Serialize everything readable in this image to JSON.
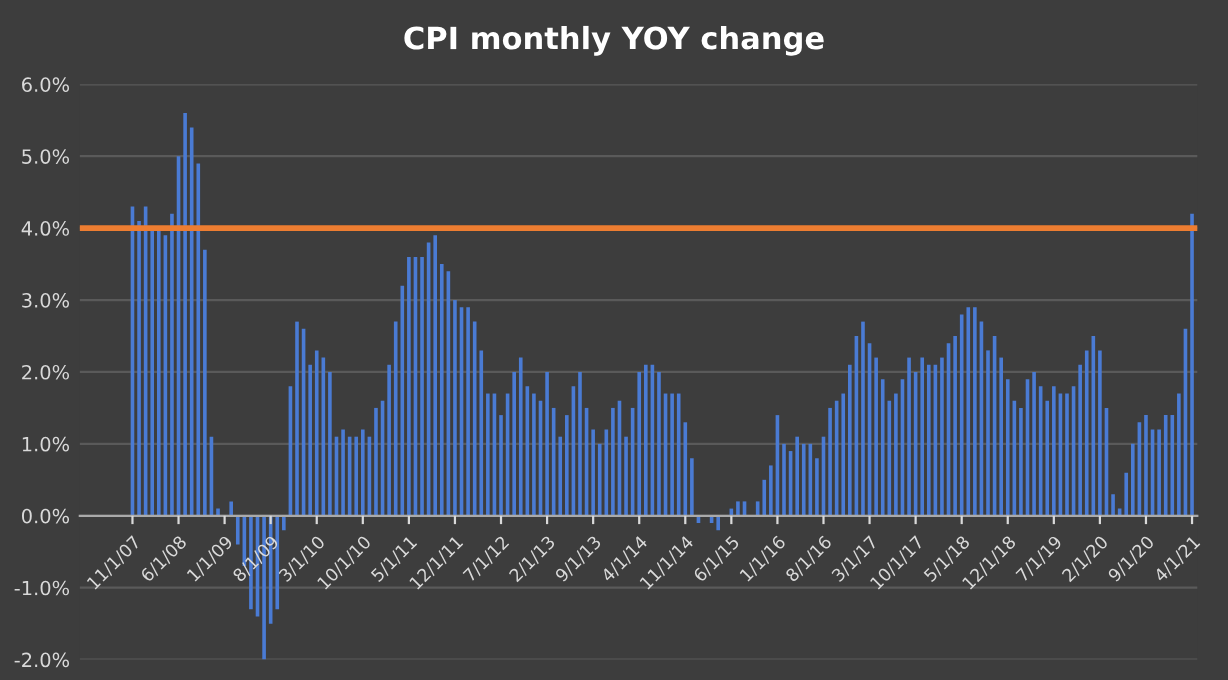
{
  "chart_data": {
    "type": "bar",
    "title": "CPI monthly YOY change",
    "categories": [
      "11/1/07",
      null,
      null,
      null,
      null,
      null,
      null,
      "6/1/08",
      null,
      null,
      null,
      null,
      null,
      null,
      "1/1/09",
      null,
      null,
      null,
      null,
      null,
      null,
      "8/1/09",
      null,
      null,
      null,
      null,
      null,
      null,
      "3/1/10",
      null,
      null,
      null,
      null,
      null,
      null,
      "10/1/10",
      null,
      null,
      null,
      null,
      null,
      null,
      "5/1/11",
      null,
      null,
      null,
      null,
      null,
      null,
      "12/1/11",
      null,
      null,
      null,
      null,
      null,
      null,
      "7/1/12",
      null,
      null,
      null,
      null,
      null,
      null,
      "2/1/13",
      null,
      null,
      null,
      null,
      null,
      null,
      "9/1/13",
      null,
      null,
      null,
      null,
      null,
      null,
      "4/1/14",
      null,
      null,
      null,
      null,
      null,
      null,
      "11/1/14",
      null,
      null,
      null,
      null,
      null,
      null,
      "6/1/15",
      null,
      null,
      null,
      null,
      null,
      null,
      "1/1/16",
      null,
      null,
      null,
      null,
      null,
      null,
      "8/1/16",
      null,
      null,
      null,
      null,
      null,
      null,
      "3/1/17",
      null,
      null,
      null,
      null,
      null,
      null,
      "10/1/17",
      null,
      null,
      null,
      null,
      null,
      null,
      "5/1/18",
      null,
      null,
      null,
      null,
      null,
      null,
      "12/1/18",
      null,
      null,
      null,
      null,
      null,
      null,
      "7/1/19",
      null,
      null,
      null,
      null,
      null,
      null,
      "2/1/20",
      null,
      null,
      null,
      null,
      null,
      null,
      "9/1/20",
      null,
      null,
      null,
      null,
      null,
      null,
      "4/1/21"
    ],
    "values": [
      4.3,
      4.1,
      4.3,
      4.0,
      4.0,
      3.9,
      4.2,
      5.0,
      5.6,
      5.4,
      4.9,
      3.7,
      1.1,
      0.1,
      0.0,
      0.2,
      -0.4,
      -0.7,
      -1.3,
      -1.4,
      -2.0,
      -1.5,
      -1.3,
      -0.2,
      1.8,
      2.7,
      2.6,
      2.1,
      2.3,
      2.2,
      2.0,
      1.1,
      1.2,
      1.1,
      1.1,
      1.2,
      1.1,
      1.5,
      1.6,
      2.1,
      2.7,
      3.2,
      3.6,
      3.6,
      3.6,
      3.8,
      3.9,
      3.5,
      3.4,
      3.0,
      2.9,
      2.9,
      2.7,
      2.3,
      1.7,
      1.7,
      1.4,
      1.7,
      2.0,
      2.2,
      1.8,
      1.7,
      1.6,
      2.0,
      1.5,
      1.1,
      1.4,
      1.8,
      2.0,
      1.5,
      1.2,
      1.0,
      1.2,
      1.5,
      1.6,
      1.1,
      1.5,
      2.0,
      2.1,
      2.1,
      2.0,
      1.7,
      1.7,
      1.7,
      1.3,
      0.8,
      -0.1,
      0.0,
      -0.1,
      -0.2,
      0.0,
      0.1,
      0.2,
      0.2,
      0.0,
      0.2,
      0.5,
      0.7,
      1.4,
      1.0,
      0.9,
      1.1,
      1.0,
      1.0,
      0.8,
      1.1,
      1.5,
      1.6,
      1.7,
      2.1,
      2.5,
      2.7,
      2.4,
      2.2,
      1.9,
      1.6,
      1.7,
      1.9,
      2.2,
      2.0,
      2.2,
      2.1,
      2.1,
      2.2,
      2.4,
      2.5,
      2.8,
      2.9,
      2.9,
      2.7,
      2.3,
      2.5,
      2.2,
      1.9,
      1.6,
      1.5,
      1.9,
      2.0,
      1.8,
      1.6,
      1.8,
      1.7,
      1.7,
      1.8,
      2.1,
      2.3,
      2.5,
      2.3,
      1.5,
      0.3,
      0.1,
      0.6,
      1.0,
      1.3,
      1.4,
      1.2,
      1.2,
      1.4,
      1.4,
      1.7,
      2.6,
      4.2
    ],
    "color": "#4a7bd4",
    "ylim": [
      -2,
      6
    ],
    "yticks": [
      {
        "value": -2,
        "label": "-2.0%"
      },
      {
        "value": -1,
        "label": "-1.0%"
      },
      {
        "value": 0,
        "label": "0.0%"
      },
      {
        "value": 1,
        "label": "1.0%"
      },
      {
        "value": 2,
        "label": "2.0%"
      },
      {
        "value": 3,
        "label": "3.0%"
      },
      {
        "value": 4,
        "label": "4.0%"
      },
      {
        "value": 5,
        "label": "5.0%"
      },
      {
        "value": 6,
        "label": "6.0%"
      }
    ],
    "grid": "y",
    "ref_lines": [
      {
        "axis": "y",
        "value": 4.0,
        "color": "#ed7d31"
      }
    ]
  }
}
